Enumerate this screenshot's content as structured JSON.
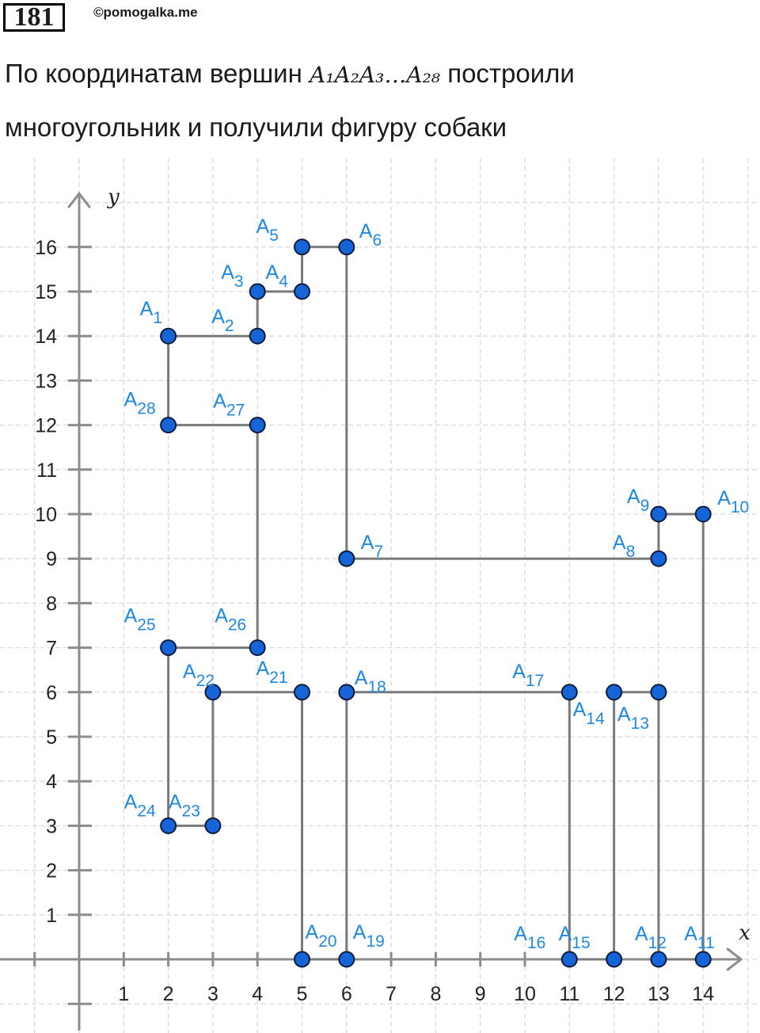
{
  "header": {
    "task_number": "181",
    "watermark": "©pomogalka.me",
    "line1_before": "По координатам вершин ",
    "line1_math": "A₁A₂A₃…A₂₈",
    "line1_after": " построили",
    "line2": "многоугольник и получили фигуру собаки"
  },
  "chart_data": {
    "type": "scatter",
    "connect": "polygon",
    "xlabel": "x",
    "ylabel": "y",
    "xlim": [
      -1,
      15.5
    ],
    "ylim": [
      -1.5,
      17.4
    ],
    "xticks": [
      1,
      2,
      3,
      4,
      5,
      6,
      7,
      8,
      9,
      10,
      11,
      12,
      13,
      14
    ],
    "yticks": [
      1,
      2,
      3,
      4,
      5,
      6,
      7,
      8,
      9,
      10,
      11,
      12,
      13,
      14,
      15,
      16
    ],
    "grid": true,
    "colors": {
      "point": "#1565d8",
      "label": "#1e88e5",
      "edge": "#7a7a7a",
      "axis": "#8c8c8c",
      "grid": "#d9d9d9"
    },
    "points": [
      {
        "name": "A",
        "sub": "1",
        "x": 2,
        "y": 14
      },
      {
        "name": "A",
        "sub": "2",
        "x": 4,
        "y": 14
      },
      {
        "name": "A",
        "sub": "3",
        "x": 4,
        "y": 15
      },
      {
        "name": "A",
        "sub": "4",
        "x": 5,
        "y": 15
      },
      {
        "name": "A",
        "sub": "5",
        "x": 5,
        "y": 16
      },
      {
        "name": "A",
        "sub": "6",
        "x": 6,
        "y": 16
      },
      {
        "name": "A",
        "sub": "7",
        "x": 6,
        "y": 9
      },
      {
        "name": "A",
        "sub": "8",
        "x": 13,
        "y": 9
      },
      {
        "name": "A",
        "sub": "9",
        "x": 13,
        "y": 10
      },
      {
        "name": "A",
        "sub": "10",
        "x": 14,
        "y": 10
      },
      {
        "name": "A",
        "sub": "11",
        "x": 14,
        "y": 0
      },
      {
        "name": "A",
        "sub": "12",
        "x": 13,
        "y": 0
      },
      {
        "name": "A",
        "sub": "13",
        "x": 13,
        "y": 6
      },
      {
        "name": "A",
        "sub": "14",
        "x": 12,
        "y": 6
      },
      {
        "name": "A",
        "sub": "15",
        "x": 12,
        "y": 0
      },
      {
        "name": "A",
        "sub": "16",
        "x": 11,
        "y": 0
      },
      {
        "name": "A",
        "sub": "17",
        "x": 11,
        "y": 6
      },
      {
        "name": "A",
        "sub": "18",
        "x": 6,
        "y": 6
      },
      {
        "name": "A",
        "sub": "19",
        "x": 6,
        "y": 0
      },
      {
        "name": "A",
        "sub": "20",
        "x": 5,
        "y": 0
      },
      {
        "name": "A",
        "sub": "21",
        "x": 5,
        "y": 6
      },
      {
        "name": "A",
        "sub": "22",
        "x": 3,
        "y": 6
      },
      {
        "name": "A",
        "sub": "23",
        "x": 3,
        "y": 3
      },
      {
        "name": "A",
        "sub": "24",
        "x": 2,
        "y": 3
      },
      {
        "name": "A",
        "sub": "25",
        "x": 2,
        "y": 7
      },
      {
        "name": "A",
        "sub": "26",
        "x": 4,
        "y": 7
      },
      {
        "name": "A",
        "sub": "27",
        "x": 4,
        "y": 12
      },
      {
        "name": "A",
        "sub": "28",
        "x": 2,
        "y": 12
      }
    ]
  }
}
